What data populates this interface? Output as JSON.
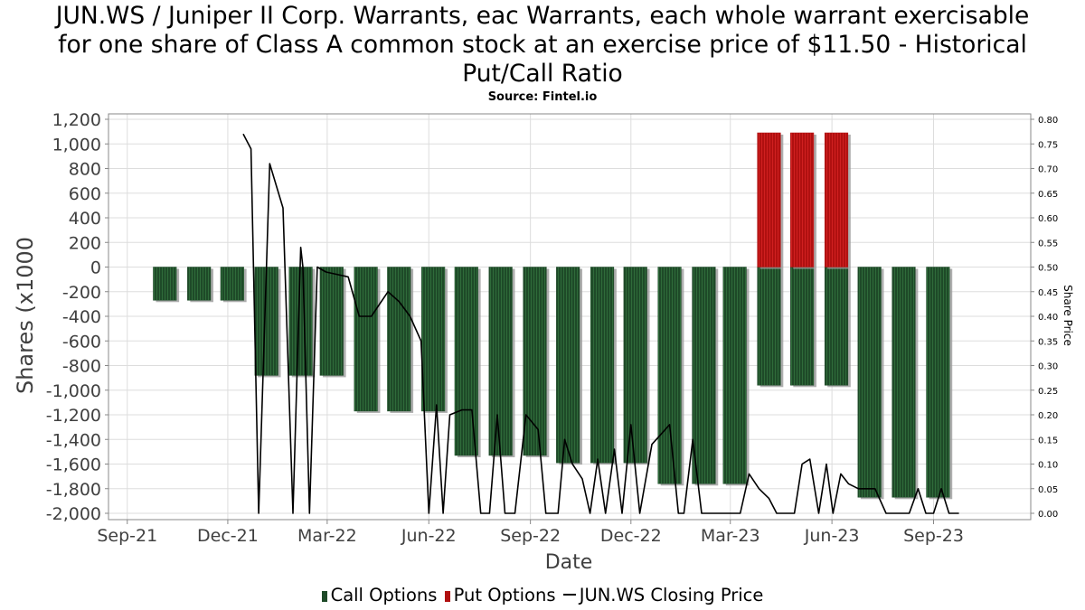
{
  "chart_data": {
    "type": "bar",
    "title_lines": [
      "JUN.WS / Juniper II Corp. Warrants, eac Warrants, each whole warrant exercisable",
      "for one share of Class A common stock at an exercise price of $11.50 - Historical",
      "Put/Call Ratio"
    ],
    "subtitle": "Source: Fintel.io",
    "xlabel": "Date",
    "ylabel": "Shares (x1000",
    "y2label": "Share Price",
    "ylim": [
      -2000,
      1200
    ],
    "y2lim": [
      0.0,
      0.8
    ],
    "grid": true,
    "yticks": [
      1200,
      1000,
      800,
      600,
      400,
      200,
      0,
      -200,
      -400,
      -600,
      -800,
      -1000,
      -1200,
      -1400,
      -1600,
      -1800,
      -2000
    ],
    "ytick_labels": [
      "1,200",
      "1,000",
      "800",
      "600",
      "400",
      "200",
      "0",
      "-200",
      "-400",
      "-600",
      "-800",
      "-1,000",
      "-1,200",
      "-1,400",
      "-1,600",
      "-1,800",
      "-2,000"
    ],
    "y2ticks": [
      0.8,
      0.75,
      0.7,
      0.65,
      0.6,
      0.55,
      0.5,
      0.45,
      0.4,
      0.35,
      0.3,
      0.25,
      0.2,
      0.15,
      0.1,
      0.05,
      0.0
    ],
    "y2tick_labels": [
      "0.80",
      "0.75",
      "0.70",
      "0.65",
      "0.60",
      "0.55",
      "0.50",
      "0.45",
      "0.40",
      "0.35",
      "0.30",
      "0.25",
      "0.20",
      "0.15",
      "0.10",
      "0.05",
      "0.00"
    ],
    "xdomain": [
      "2021-08-15",
      "2023-11-28"
    ],
    "xticks": [
      {
        "date": "2021-09-01",
        "label": "Sep-21"
      },
      {
        "date": "2021-12-01",
        "label": "Dec-21"
      },
      {
        "date": "2022-03-01",
        "label": "Mar-22"
      },
      {
        "date": "2022-06-01",
        "label": "Jun-22"
      },
      {
        "date": "2022-09-01",
        "label": "Sep-22"
      },
      {
        "date": "2022-12-01",
        "label": "Dec-22"
      },
      {
        "date": "2023-03-01",
        "label": "Mar-23"
      },
      {
        "date": "2023-06-01",
        "label": "Jun-23"
      },
      {
        "date": "2023-09-01",
        "label": "Sep-23"
      }
    ],
    "bar_width_days": 21,
    "series": [
      {
        "name": "Call Options",
        "color": "#1e4a28",
        "points": [
          {
            "date": "2021-10-05",
            "value": -270
          },
          {
            "date": "2021-11-05",
            "value": -270
          },
          {
            "date": "2021-12-05",
            "value": -270
          },
          {
            "date": "2022-01-05",
            "value": -880
          },
          {
            "date": "2022-02-05",
            "value": -880
          },
          {
            "date": "2022-03-05",
            "value": -880
          },
          {
            "date": "2022-04-05",
            "value": -1170
          },
          {
            "date": "2022-05-05",
            "value": -1170
          },
          {
            "date": "2022-06-05",
            "value": -1170
          },
          {
            "date": "2022-07-05",
            "value": -1530
          },
          {
            "date": "2022-08-05",
            "value": -1530
          },
          {
            "date": "2022-09-05",
            "value": -1530
          },
          {
            "date": "2022-10-05",
            "value": -1590
          },
          {
            "date": "2022-11-05",
            "value": -1590
          },
          {
            "date": "2022-12-05",
            "value": -1590
          },
          {
            "date": "2023-01-05",
            "value": -1760
          },
          {
            "date": "2023-02-05",
            "value": -1760
          },
          {
            "date": "2023-03-05",
            "value": -1760
          },
          {
            "date": "2023-04-05",
            "value": -960
          },
          {
            "date": "2023-05-05",
            "value": -960
          },
          {
            "date": "2023-06-05",
            "value": -960
          },
          {
            "date": "2023-07-05",
            "value": -1870
          },
          {
            "date": "2023-08-05",
            "value": -1870
          },
          {
            "date": "2023-09-05",
            "value": -1870
          }
        ]
      },
      {
        "name": "Put Options",
        "color": "#b01010",
        "points": [
          {
            "date": "2023-04-05",
            "value": 1090
          },
          {
            "date": "2023-05-05",
            "value": 1090
          },
          {
            "date": "2023-06-05",
            "value": 1090
          }
        ]
      },
      {
        "name": "JUN.WS Closing Price",
        "color": "#000000",
        "axis": "right",
        "points": [
          {
            "date": "2021-12-15",
            "value": 0.77
          },
          {
            "date": "2021-12-22",
            "value": 0.74
          },
          {
            "date": "2021-12-29",
            "value": 0.0
          },
          {
            "date": "2022-01-08",
            "value": 0.71
          },
          {
            "date": "2022-01-20",
            "value": 0.62
          },
          {
            "date": "2022-01-29",
            "value": 0.0
          },
          {
            "date": "2022-02-05",
            "value": 0.54
          },
          {
            "date": "2022-02-07",
            "value": 0.5
          },
          {
            "date": "2022-02-13",
            "value": 0.0
          },
          {
            "date": "2022-02-20",
            "value": 0.5
          },
          {
            "date": "2022-02-28",
            "value": 0.49
          },
          {
            "date": "2022-03-20",
            "value": 0.48
          },
          {
            "date": "2022-03-30",
            "value": 0.4
          },
          {
            "date": "2022-04-10",
            "value": 0.4
          },
          {
            "date": "2022-04-25",
            "value": 0.45
          },
          {
            "date": "2022-05-05",
            "value": 0.43
          },
          {
            "date": "2022-05-15",
            "value": 0.4
          },
          {
            "date": "2022-05-25",
            "value": 0.35
          },
          {
            "date": "2022-06-01",
            "value": 0.0
          },
          {
            "date": "2022-06-08",
            "value": 0.22
          },
          {
            "date": "2022-06-14",
            "value": 0.0
          },
          {
            "date": "2022-06-20",
            "value": 0.2
          },
          {
            "date": "2022-07-01",
            "value": 0.21
          },
          {
            "date": "2022-07-10",
            "value": 0.21
          },
          {
            "date": "2022-07-18",
            "value": 0.0
          },
          {
            "date": "2022-07-26",
            "value": 0.0
          },
          {
            "date": "2022-08-02",
            "value": 0.2
          },
          {
            "date": "2022-08-09",
            "value": 0.0
          },
          {
            "date": "2022-08-18",
            "value": 0.0
          },
          {
            "date": "2022-08-28",
            "value": 0.2
          },
          {
            "date": "2022-09-08",
            "value": 0.17
          },
          {
            "date": "2022-09-15",
            "value": 0.0
          },
          {
            "date": "2022-09-26",
            "value": 0.0
          },
          {
            "date": "2022-10-02",
            "value": 0.15
          },
          {
            "date": "2022-10-09",
            "value": 0.1
          },
          {
            "date": "2022-10-18",
            "value": 0.07
          },
          {
            "date": "2022-10-25",
            "value": 0.0
          },
          {
            "date": "2022-11-01",
            "value": 0.11
          },
          {
            "date": "2022-11-08",
            "value": 0.0
          },
          {
            "date": "2022-11-16",
            "value": 0.13
          },
          {
            "date": "2022-11-23",
            "value": 0.0
          },
          {
            "date": "2022-12-01",
            "value": 0.18
          },
          {
            "date": "2022-12-09",
            "value": 0.0
          },
          {
            "date": "2022-12-20",
            "value": 0.14
          },
          {
            "date": "2022-12-28",
            "value": 0.16
          },
          {
            "date": "2023-01-05",
            "value": 0.18
          },
          {
            "date": "2023-01-13",
            "value": 0.0
          },
          {
            "date": "2023-01-18",
            "value": 0.0
          },
          {
            "date": "2023-01-26",
            "value": 0.15
          },
          {
            "date": "2023-02-03",
            "value": 0.0
          },
          {
            "date": "2023-02-28",
            "value": 0.0
          },
          {
            "date": "2023-03-10",
            "value": 0.0
          },
          {
            "date": "2023-03-18",
            "value": 0.08
          },
          {
            "date": "2023-03-27",
            "value": 0.05
          },
          {
            "date": "2023-04-05",
            "value": 0.03
          },
          {
            "date": "2023-04-12",
            "value": 0.0
          },
          {
            "date": "2023-04-28",
            "value": 0.0
          },
          {
            "date": "2023-05-05",
            "value": 0.1
          },
          {
            "date": "2023-05-12",
            "value": 0.11
          },
          {
            "date": "2023-05-20",
            "value": 0.0
          },
          {
            "date": "2023-05-27",
            "value": 0.1
          },
          {
            "date": "2023-06-02",
            "value": 0.0
          },
          {
            "date": "2023-06-09",
            "value": 0.08
          },
          {
            "date": "2023-06-16",
            "value": 0.06
          },
          {
            "date": "2023-06-25",
            "value": 0.05
          },
          {
            "date": "2023-07-01",
            "value": 0.05
          },
          {
            "date": "2023-07-10",
            "value": 0.05
          },
          {
            "date": "2023-07-20",
            "value": 0.0
          },
          {
            "date": "2023-08-10",
            "value": 0.0
          },
          {
            "date": "2023-08-18",
            "value": 0.05
          },
          {
            "date": "2023-08-25",
            "value": 0.0
          },
          {
            "date": "2023-09-01",
            "value": 0.0
          },
          {
            "date": "2023-09-08",
            "value": 0.05
          },
          {
            "date": "2023-09-15",
            "value": 0.0
          },
          {
            "date": "2023-09-24",
            "value": 0.0
          }
        ]
      }
    ]
  }
}
